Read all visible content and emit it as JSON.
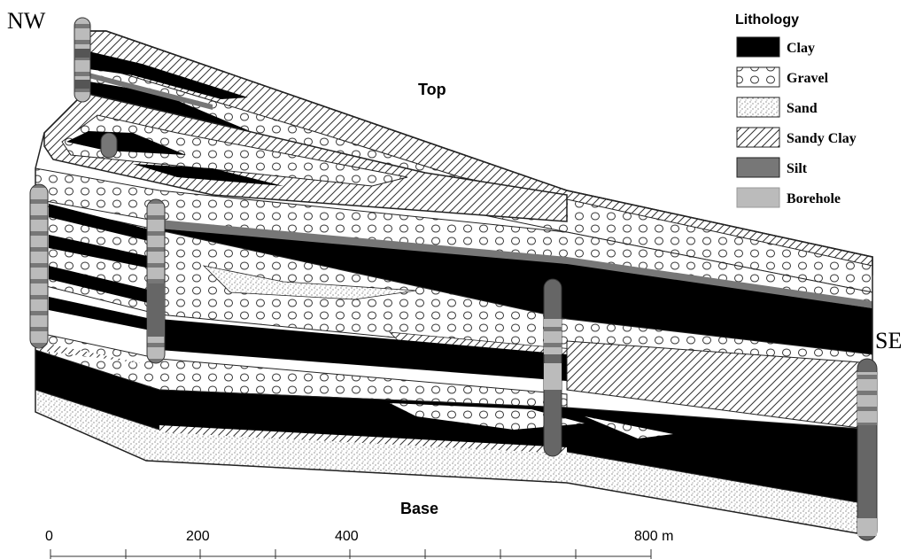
{
  "labels": {
    "nw": "NW",
    "se": "SE",
    "top": "Top",
    "base": "Base"
  },
  "legend": {
    "title": "Lithology",
    "items": [
      {
        "label": "Clay",
        "pattern": "clay"
      },
      {
        "label": "Gravel",
        "pattern": "gravel"
      },
      {
        "label": "Sand",
        "pattern": "sand"
      },
      {
        "label": "Sandy Clay",
        "pattern": "sandy-clay"
      },
      {
        "label": "Silt",
        "pattern": "silt"
      },
      {
        "label": "Borehole",
        "pattern": "borehole"
      }
    ]
  },
  "scale_bar": {
    "ticks": [
      {
        "label": "0"
      },
      {
        "label": "200"
      },
      {
        "label": "400"
      },
      {
        "label": "800 m"
      }
    ]
  },
  "colors": {
    "clay": "#000000",
    "silt": "#777777",
    "borehole": "#bbbbbb",
    "outline": "#222222",
    "background": "#ffffff"
  }
}
